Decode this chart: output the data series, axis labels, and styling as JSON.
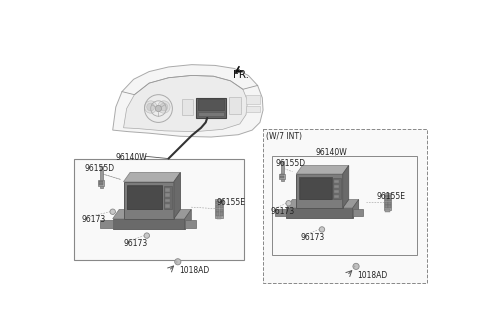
{
  "bg_color": "#ffffff",
  "fig_width": 4.8,
  "fig_height": 3.27,
  "dpi": 100,
  "fr_label": "FR.",
  "wi7_label": "(W/7 INT)",
  "label_96140W": "96140W",
  "label_96155D": "96155D",
  "label_96155E": "96155E",
  "label_96173a": "96173",
  "label_96173b": "96173",
  "label_1018AD": "1018AD",
  "tc": "#222222",
  "lc": "#666666",
  "dark_gray": "#555555",
  "mid_gray": "#888888",
  "light_gray": "#bbbbbb",
  "very_light": "#dddddd",
  "face_front": "#7a7a7a",
  "face_top": "#b0b0b0",
  "face_right": "#696969",
  "bracket_face": "#6e6e6e",
  "bracket_top": "#9a9a9a"
}
